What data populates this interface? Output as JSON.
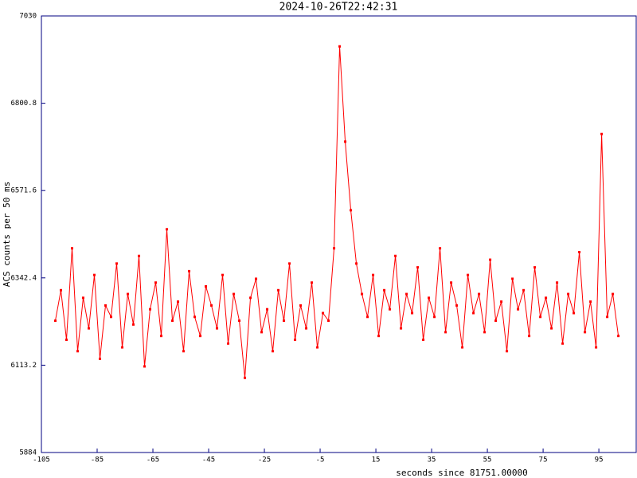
{
  "chart_data": {
    "type": "line",
    "title": "2024-10-26T22:42:31",
    "x_label": "seconds since 81751.00000",
    "y_label": "ACS counts per 50 ms",
    "x": [
      -100,
      -98,
      -96,
      -94,
      -92,
      -90,
      -88,
      -86,
      -84,
      -82,
      -80,
      -78,
      -76,
      -74,
      -72,
      -70,
      -68,
      -66,
      -64,
      -62,
      -60,
      -58,
      -56,
      -54,
      -52,
      -50,
      -48,
      -46,
      -44,
      -42,
      -40,
      -38,
      -36,
      -34,
      -32,
      -30,
      -28,
      -26,
      -24,
      -22,
      -20,
      -18,
      -16,
      -14,
      -12,
      -10,
      -8,
      -6,
      -4,
      -2,
      0,
      2,
      4,
      6,
      8,
      10,
      12,
      14,
      16,
      18,
      20,
      22,
      24,
      26,
      28,
      30,
      32,
      34,
      36,
      38,
      40,
      42,
      44,
      46,
      48,
      50,
      52,
      54,
      56,
      58,
      60,
      62,
      64,
      66,
      68,
      70,
      72,
      74,
      76,
      78,
      80,
      82,
      84,
      86,
      88,
      90,
      92,
      94,
      96,
      98,
      100,
      102
    ],
    "series": [
      {
        "name": "ACS",
        "color": "#ff0000",
        "values": [
          6230,
          6310,
          6180,
          6420,
          6150,
          6290,
          6210,
          6350,
          6130,
          6270,
          6240,
          6380,
          6160,
          6300,
          6220,
          6400,
          6110,
          6260,
          6330,
          6190,
          6470,
          6230,
          6280,
          6150,
          6360,
          6240,
          6190,
          6320,
          6270,
          6210,
          6350,
          6170,
          6300,
          6230,
          6080,
          6290,
          6340,
          6200,
          6260,
          6150,
          6310,
          6230,
          6380,
          6180,
          6270,
          6210,
          6330,
          6160,
          6250,
          6230,
          6420,
          6950,
          6700,
          6520,
          6380,
          6300,
          6240,
          6350,
          6190,
          6310,
          6260,
          6400,
          6210,
          6300,
          6250,
          6370,
          6180,
          6290,
          6240,
          6420,
          6200,
          6330,
          6270,
          6160,
          6350,
          6250,
          6300,
          6200,
          6390,
          6230,
          6280,
          6150,
          6340,
          6260,
          6310,
          6190,
          6370,
          6240,
          6290,
          6210,
          6330,
          6170,
          6300,
          6250,
          6410,
          6200,
          6280,
          6160,
          6720,
          6240,
          6300,
          6190
        ]
      }
    ],
    "xlim": [
      -105,
      108.4
    ],
    "xticks": [
      -105,
      -85,
      -65,
      -45,
      -25,
      -5,
      15,
      35,
      55,
      75,
      95
    ],
    "ylim": [
      5884,
      7030
    ],
    "yticks": [
      5884,
      6113.2,
      6342.4,
      6571.6,
      6800.8,
      7030
    ]
  }
}
